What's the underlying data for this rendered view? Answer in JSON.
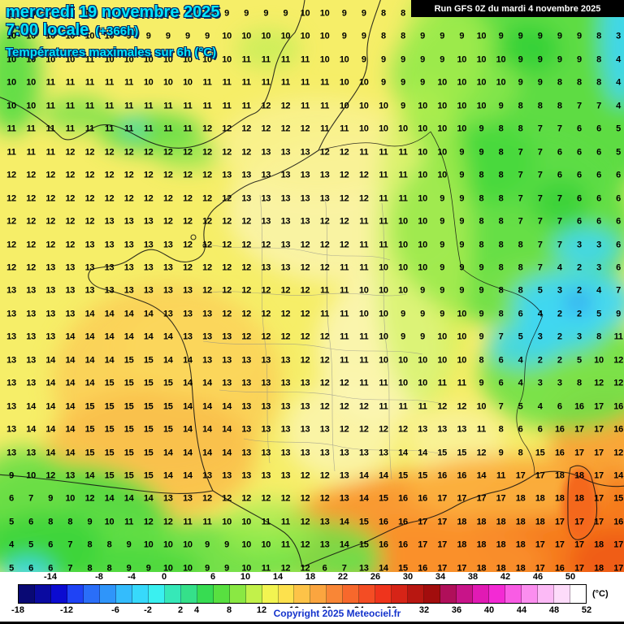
{
  "header": {
    "date": "mercredi 19 novembre 2025",
    "time": "7:00 locale",
    "offset": "(+366h)",
    "subtitle": "Températures maximales sur 6h (°C)",
    "run_info": "Run GFS 0Z du mardi 4 novembre 2025"
  },
  "footer": {
    "copyright": "Copyright 2025 Meteociel.fr"
  },
  "legend": {
    "unit": "(°C)",
    "min": -18,
    "max": 52,
    "top_labels": [
      -14,
      -8,
      -4,
      0,
      6,
      10,
      14,
      18,
      22,
      26,
      30,
      34,
      38,
      42,
      46,
      50
    ],
    "bottom_labels": [
      -18,
      -12,
      -6,
      -2,
      2,
      4,
      8,
      12,
      16,
      20,
      24,
      28,
      32,
      36,
      40,
      44,
      48,
      52
    ],
    "colors": [
      "#090974",
      "#0a0aa0",
      "#0b0bd0",
      "#1f43f5",
      "#2a6ef8",
      "#2f95fa",
      "#34bcfc",
      "#37d9fb",
      "#3af0f0",
      "#36e8b8",
      "#35e08a",
      "#37dc52",
      "#58e040",
      "#8ae843",
      "#c2f14a",
      "#f2f451",
      "#fde14d",
      "#fdc348",
      "#fba53f",
      "#f98636",
      "#f7682c",
      "#f44d24",
      "#ef341c",
      "#d62417",
      "#b81711",
      "#a20d0d",
      "#b00f5a",
      "#c81489",
      "#e11ab4",
      "#f32ad4",
      "#f95ce4",
      "#fb8eef",
      "#fcbaf6",
      "#fddcfa",
      "#ffffff"
    ]
  },
  "map": {
    "rows": 25,
    "cols": 32,
    "temperatures": [
      [
        9,
        10,
        10,
        10,
        10,
        9,
        9,
        9,
        8,
        8,
        8,
        9,
        9,
        9,
        9,
        10,
        10,
        9,
        9,
        8,
        8,
        9,
        9,
        9,
        10,
        9,
        9,
        8,
        8,
        9,
        8,
        3
      ],
      [
        10,
        10,
        10,
        10,
        10,
        10,
        9,
        9,
        9,
        9,
        9,
        10,
        10,
        10,
        10,
        10,
        10,
        9,
        9,
        8,
        8,
        9,
        9,
        9,
        10,
        9,
        9,
        9,
        9,
        9,
        8,
        3
      ],
      [
        10,
        10,
        10,
        10,
        11,
        10,
        10,
        10,
        10,
        10,
        10,
        10,
        11,
        11,
        11,
        11,
        10,
        10,
        9,
        9,
        9,
        9,
        9,
        10,
        10,
        10,
        9,
        9,
        9,
        9,
        8,
        4
      ],
      [
        10,
        10,
        11,
        11,
        11,
        11,
        11,
        10,
        10,
        10,
        11,
        11,
        11,
        11,
        11,
        11,
        11,
        10,
        10,
        9,
        9,
        9,
        10,
        10,
        10,
        10,
        9,
        9,
        8,
        8,
        8,
        4
      ],
      [
        10,
        10,
        11,
        11,
        11,
        11,
        11,
        11,
        11,
        11,
        11,
        11,
        11,
        12,
        12,
        11,
        11,
        10,
        10,
        10,
        9,
        10,
        10,
        10,
        10,
        9,
        8,
        8,
        8,
        7,
        7,
        4
      ],
      [
        11,
        11,
        11,
        11,
        11,
        11,
        11,
        11,
        11,
        11,
        12,
        12,
        12,
        12,
        12,
        12,
        11,
        11,
        10,
        10,
        10,
        10,
        10,
        10,
        9,
        8,
        8,
        7,
        7,
        6,
        6,
        5
      ],
      [
        11,
        11,
        11,
        12,
        12,
        12,
        12,
        12,
        12,
        12,
        12,
        12,
        12,
        13,
        13,
        13,
        12,
        12,
        11,
        11,
        11,
        10,
        10,
        9,
        9,
        8,
        7,
        7,
        6,
        6,
        6,
        5
      ],
      [
        12,
        12,
        12,
        12,
        12,
        12,
        12,
        12,
        12,
        12,
        12,
        13,
        13,
        13,
        13,
        13,
        13,
        12,
        12,
        11,
        11,
        10,
        10,
        9,
        8,
        8,
        7,
        7,
        6,
        6,
        6,
        6
      ],
      [
        12,
        12,
        12,
        12,
        12,
        12,
        12,
        12,
        12,
        12,
        12,
        12,
        13,
        13,
        13,
        13,
        13,
        12,
        12,
        11,
        11,
        10,
        9,
        9,
        8,
        8,
        7,
        7,
        7,
        6,
        6,
        6
      ],
      [
        12,
        12,
        12,
        12,
        12,
        13,
        13,
        13,
        12,
        12,
        12,
        12,
        12,
        13,
        13,
        13,
        12,
        12,
        11,
        11,
        10,
        10,
        9,
        9,
        8,
        8,
        7,
        7,
        7,
        6,
        6,
        6
      ],
      [
        12,
        12,
        12,
        12,
        13,
        13,
        13,
        13,
        13,
        12,
        12,
        12,
        12,
        12,
        13,
        12,
        12,
        12,
        11,
        11,
        10,
        10,
        9,
        9,
        8,
        8,
        8,
        7,
        7,
        3,
        3,
        6
      ],
      [
        12,
        12,
        13,
        13,
        13,
        13,
        13,
        13,
        13,
        12,
        12,
        12,
        12,
        13,
        13,
        12,
        12,
        11,
        11,
        10,
        10,
        10,
        9,
        9,
        9,
        8,
        8,
        7,
        4,
        2,
        3,
        6
      ],
      [
        13,
        13,
        13,
        13,
        13,
        13,
        13,
        13,
        13,
        13,
        12,
        12,
        12,
        12,
        12,
        12,
        11,
        11,
        10,
        10,
        10,
        9,
        9,
        9,
        9,
        8,
        8,
        5,
        3,
        2,
        4,
        7
      ],
      [
        13,
        13,
        13,
        13,
        14,
        14,
        14,
        14,
        13,
        13,
        13,
        12,
        12,
        12,
        12,
        12,
        11,
        11,
        10,
        10,
        9,
        9,
        9,
        10,
        9,
        8,
        6,
        4,
        2,
        2,
        5,
        9
      ],
      [
        13,
        13,
        13,
        14,
        14,
        14,
        14,
        14,
        14,
        13,
        13,
        13,
        12,
        12,
        12,
        12,
        12,
        11,
        11,
        10,
        9,
        9,
        10,
        10,
        9,
        7,
        5,
        3,
        2,
        3,
        8,
        11
      ],
      [
        13,
        13,
        14,
        14,
        14,
        14,
        15,
        15,
        14,
        14,
        13,
        13,
        13,
        13,
        13,
        12,
        12,
        11,
        11,
        10,
        10,
        10,
        10,
        10,
        8,
        6,
        4,
        2,
        2,
        5,
        10,
        12
      ],
      [
        13,
        13,
        14,
        14,
        14,
        15,
        15,
        15,
        15,
        14,
        14,
        13,
        13,
        13,
        13,
        13,
        12,
        12,
        11,
        11,
        10,
        10,
        11,
        11,
        9,
        6,
        4,
        3,
        3,
        8,
        12,
        12
      ],
      [
        13,
        14,
        14,
        14,
        15,
        15,
        15,
        15,
        15,
        14,
        14,
        14,
        13,
        13,
        13,
        13,
        12,
        12,
        12,
        11,
        11,
        11,
        12,
        12,
        10,
        7,
        5,
        4,
        6,
        16,
        17,
        16
      ],
      [
        13,
        14,
        14,
        14,
        15,
        15,
        15,
        15,
        15,
        14,
        14,
        14,
        13,
        13,
        13,
        13,
        13,
        12,
        12,
        12,
        12,
        13,
        13,
        13,
        11,
        8,
        6,
        6,
        16,
        17,
        17,
        16
      ],
      [
        13,
        13,
        14,
        14,
        15,
        15,
        15,
        15,
        14,
        14,
        14,
        14,
        13,
        13,
        13,
        13,
        13,
        13,
        13,
        13,
        14,
        14,
        15,
        15,
        12,
        9,
        8,
        15,
        16,
        17,
        17,
        12
      ],
      [
        9,
        10,
        12,
        13,
        14,
        15,
        15,
        15,
        14,
        14,
        13,
        13,
        13,
        13,
        13,
        12,
        12,
        13,
        14,
        14,
        15,
        15,
        16,
        16,
        14,
        11,
        17,
        17,
        18,
        18,
        17,
        14
      ],
      [
        6,
        7,
        9,
        10,
        12,
        14,
        14,
        14,
        13,
        13,
        12,
        12,
        12,
        12,
        12,
        12,
        12,
        13,
        14,
        15,
        16,
        16,
        17,
        17,
        17,
        17,
        18,
        18,
        18,
        18,
        17,
        15
      ],
      [
        5,
        6,
        8,
        8,
        9,
        10,
        11,
        12,
        12,
        11,
        11,
        10,
        10,
        11,
        11,
        12,
        13,
        14,
        15,
        16,
        16,
        17,
        17,
        18,
        18,
        18,
        18,
        18,
        17,
        17,
        17,
        16
      ],
      [
        4,
        5,
        6,
        7,
        8,
        8,
        9,
        10,
        10,
        10,
        9,
        9,
        10,
        10,
        11,
        12,
        13,
        14,
        15,
        16,
        16,
        17,
        17,
        18,
        18,
        18,
        18,
        17,
        17,
        17,
        18,
        17
      ],
      [
        5,
        6,
        6,
        7,
        8,
        8,
        9,
        9,
        10,
        10,
        9,
        9,
        10,
        11,
        12,
        12,
        6,
        7,
        13,
        14,
        15,
        16,
        17,
        17,
        18,
        18,
        18,
        17,
        16,
        17,
        18,
        17
      ]
    ]
  }
}
